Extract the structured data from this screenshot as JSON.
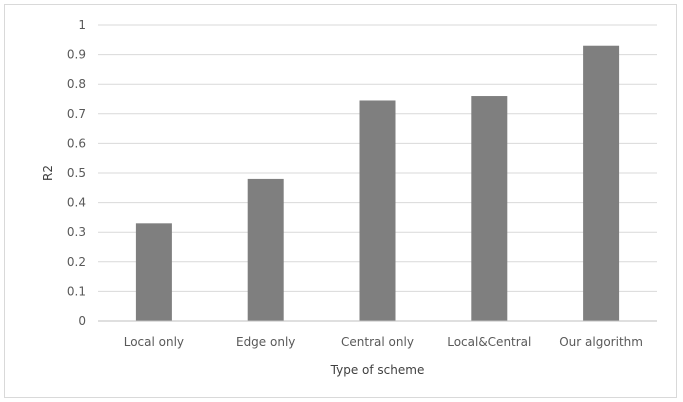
{
  "chart_data": {
    "type": "bar",
    "title": "",
    "xlabel": "Type of scheme",
    "ylabel": "R2",
    "categories": [
      "Local only",
      "Edge only",
      "Central only",
      "Local&Central",
      "Our algorithm"
    ],
    "values": [
      0.33,
      0.48,
      0.745,
      0.76,
      0.93
    ],
    "ylim": [
      0,
      1
    ],
    "yticks": [
      0,
      0.1,
      0.2,
      0.3,
      0.4,
      0.5,
      0.6,
      0.7,
      0.8,
      0.9,
      1
    ],
    "ytick_labels": [
      "0",
      "0.1",
      "0.2",
      "0.3",
      "0.4",
      "0.5",
      "0.6",
      "0.7",
      "0.8",
      "0.9",
      "1"
    ],
    "grid": true,
    "legend": "none",
    "colors": {
      "bar": "#7f7f7f",
      "grid": "#d9d9d9",
      "axis": "#bfbfbf",
      "text": "#595959"
    }
  }
}
